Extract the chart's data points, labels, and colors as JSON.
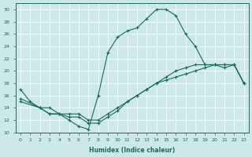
{
  "xlabel": "Humidex (Indice chaleur)",
  "xlim": [
    -0.5,
    23.5
  ],
  "ylim": [
    10,
    31
  ],
  "yticks": [
    10,
    12,
    14,
    16,
    18,
    20,
    22,
    24,
    26,
    28,
    30
  ],
  "xticks": [
    0,
    1,
    2,
    3,
    4,
    5,
    6,
    7,
    8,
    9,
    10,
    11,
    12,
    13,
    14,
    15,
    16,
    17,
    18,
    19,
    20,
    21,
    22,
    23
  ],
  "bg_color": "#cce8e8",
  "line_color": "#1a6b5a",
  "grid_color": "#ffffff",
  "line1_x": [
    0,
    1,
    2,
    3,
    4,
    5,
    6,
    7,
    8,
    9,
    10,
    11,
    12,
    13,
    14,
    15,
    16,
    17,
    18,
    19,
    20,
    21,
    22,
    23
  ],
  "line1_y": [
    17,
    15,
    14,
    14,
    13,
    12,
    11,
    10.5,
    16,
    23,
    25.5,
    26.5,
    27,
    28.5,
    30,
    30,
    29,
    26,
    24,
    21,
    21,
    20.5,
    21,
    18
  ],
  "line2_x": [
    0,
    2,
    3,
    4,
    5,
    6,
    7,
    8,
    9,
    10,
    11,
    12,
    13,
    14,
    15,
    16,
    17,
    18,
    19,
    20,
    21,
    22,
    23
  ],
  "line2_y": [
    15.5,
    14,
    13,
    13,
    13,
    13,
    12,
    12,
    13,
    14,
    15,
    16,
    17,
    18,
    19,
    20,
    20.5,
    21,
    21,
    21,
    21,
    21,
    18
  ],
  "line3_x": [
    0,
    2,
    3,
    4,
    5,
    6,
    7,
    8,
    9,
    10,
    11,
    12,
    13,
    14,
    15,
    16,
    17,
    18,
    19,
    20,
    21,
    22,
    23
  ],
  "line3_y": [
    15,
    14,
    13,
    13,
    12.5,
    12.5,
    11.5,
    11.5,
    12.5,
    13.5,
    15,
    16,
    17,
    18,
    18.5,
    19,
    19.5,
    20,
    20.5,
    21,
    21,
    21,
    18
  ]
}
